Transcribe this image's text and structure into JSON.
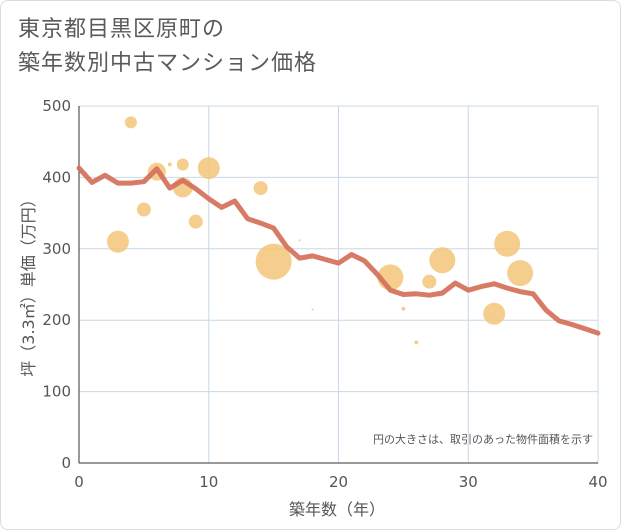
{
  "title_line1": "東京都目黒区原町の",
  "title_line2": "築年数別中古マンション価格",
  "chart_data": {
    "type": "scatter",
    "xlabel": "築年数（年）",
    "ylabel": "坪（3.3㎡）単価（万円）",
    "xlim": [
      0,
      40
    ],
    "ylim": [
      0,
      500
    ],
    "xticks": [
      0,
      10,
      20,
      30,
      40
    ],
    "yticks": [
      0,
      100,
      200,
      300,
      400,
      500
    ],
    "grid": true,
    "note": "円の大きさは、取引のあった物件面積を示す",
    "colors": {
      "line": "#d4705a",
      "bubble": "#f3c679",
      "grid": "#c8d8e8"
    },
    "series": [
      {
        "kind": "bubble",
        "points": [
          {
            "x": 3,
            "y": 310,
            "r": 11
          },
          {
            "x": 4,
            "y": 477,
            "r": 6
          },
          {
            "x": 5,
            "y": 355,
            "r": 7
          },
          {
            "x": 6,
            "y": 408,
            "r": 9
          },
          {
            "x": 7,
            "y": 418,
            "r": 2
          },
          {
            "x": 8,
            "y": 418,
            "r": 6
          },
          {
            "x": 8,
            "y": 386,
            "r": 10
          },
          {
            "x": 9,
            "y": 338,
            "r": 7
          },
          {
            "x": 10,
            "y": 413,
            "r": 11
          },
          {
            "x": 14,
            "y": 385,
            "r": 7
          },
          {
            "x": 15,
            "y": 282,
            "r": 18
          },
          {
            "x": 17,
            "y": 312,
            "r": 1
          },
          {
            "x": 18,
            "y": 215,
            "r": 1
          },
          {
            "x": 24,
            "y": 260,
            "r": 13
          },
          {
            "x": 25,
            "y": 216,
            "r": 2
          },
          {
            "x": 26,
            "y": 169,
            "r": 2
          },
          {
            "x": 27,
            "y": 254,
            "r": 7
          },
          {
            "x": 28,
            "y": 284,
            "r": 13
          },
          {
            "x": 32,
            "y": 209,
            "r": 11
          },
          {
            "x": 33,
            "y": 307,
            "r": 13
          },
          {
            "x": 34,
            "y": 266,
            "r": 13
          }
        ]
      },
      {
        "kind": "line",
        "x": [
          0,
          1,
          2,
          3,
          4,
          5,
          6,
          7,
          8,
          9,
          10,
          11,
          12,
          13,
          14,
          15,
          16,
          17,
          18,
          19,
          20,
          21,
          22,
          23,
          24,
          25,
          26,
          27,
          28,
          29,
          30,
          31,
          32,
          33,
          34,
          35,
          36,
          37,
          38,
          39,
          40
        ],
        "y": [
          413,
          393,
          403,
          392,
          392,
          394,
          412,
          385,
          396,
          384,
          370,
          358,
          367,
          342,
          336,
          329,
          303,
          287,
          290,
          285,
          280,
          292,
          283,
          264,
          242,
          236,
          237,
          235,
          238,
          252,
          242,
          247,
          251,
          245,
          240,
          237,
          214,
          199,
          194,
          188,
          182
        ]
      }
    ]
  }
}
